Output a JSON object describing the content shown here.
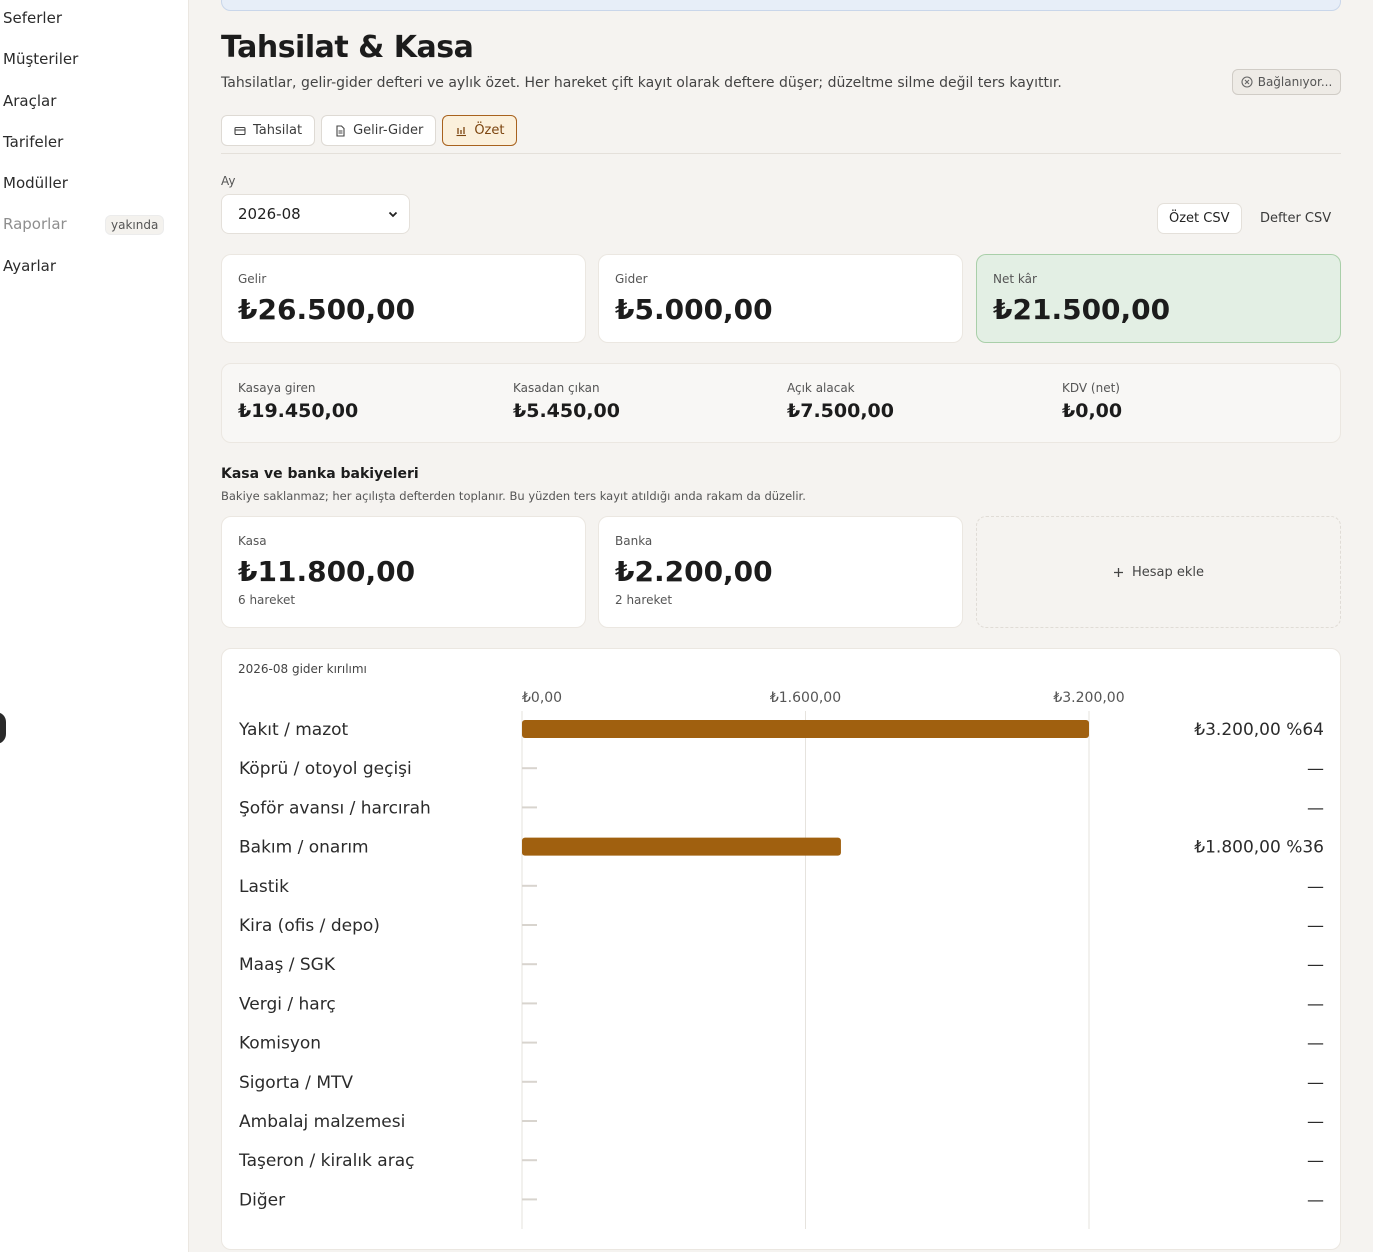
{
  "sidebar": {
    "items": [
      {
        "label": "Seferler"
      },
      {
        "label": "Müşteriler"
      },
      {
        "label": "Araçlar"
      },
      {
        "label": "Tarifeler"
      },
      {
        "label": "Modüller"
      },
      {
        "label": "Raporlar",
        "badge": "yakında",
        "disabled": true
      },
      {
        "label": "Ayarlar"
      }
    ]
  },
  "header": {
    "title": "Tahsilat & Kasa",
    "subtitle": "Tahsilatlar, gelir-gider defteri ve aylık özet. Her hareket çift kayıt olarak deftere düşer; düzeltme silme değil ters kayıttır.",
    "status": "Bağlanıyor..."
  },
  "tabs": [
    {
      "label": "Tahsilat",
      "icon": "card-icon"
    },
    {
      "label": "Gelir-Gider",
      "icon": "document-icon"
    },
    {
      "label": "Özet",
      "icon": "chart-icon",
      "active": true
    }
  ],
  "filter": {
    "month_label": "Ay",
    "month_value": "2026-08"
  },
  "exports": {
    "summary_csv": "Özet CSV",
    "ledger_csv": "Defter CSV"
  },
  "summary": {
    "income_label": "Gelir",
    "income_value": "₺26.500,00",
    "expense_label": "Gider",
    "expense_value": "₺5.000,00",
    "net_label": "Net kâr",
    "net_value": "₺21.500,00"
  },
  "cash_stats": [
    {
      "label": "Kasaya giren",
      "value": "₺19.450,00"
    },
    {
      "label": "Kasadan çıkan",
      "value": "₺5.450,00"
    },
    {
      "label": "Açık alacak",
      "value": "₺7.500,00"
    },
    {
      "label": "KDV (net)",
      "value": "₺0,00"
    }
  ],
  "balances": {
    "title": "Kasa ve banka bakiyeleri",
    "subtitle": "Bakiye saklanmaz; her açılışta defterden toplanır. Bu yüzden ters kayıt atıldığı anda rakam da düzelir.",
    "accounts": [
      {
        "name": "Kasa",
        "value": "₺11.800,00",
        "count": "6 hareket"
      },
      {
        "name": "Banka",
        "value": "₺2.200,00",
        "count": "2 hareket"
      }
    ],
    "add_label": "Hesap ekle"
  },
  "chart_data": {
    "type": "bar",
    "orientation": "horizontal",
    "title": "2026-08 gider kırılımı",
    "xlim": [
      0,
      3200
    ],
    "ticks": [
      "₺0,00",
      "₺1.600,00",
      "₺3.200,00"
    ],
    "tick_values": [
      0,
      1600,
      3200
    ],
    "categories": [
      "Yakıt / mazot",
      "Köprü / otoyol geçişi",
      "Şoför avansı / harcırah",
      "Bakım / onarım",
      "Lastik",
      "Kira (ofis / depo)",
      "Maaş / SGK",
      "Vergi / harç",
      "Komisyon",
      "Sigorta / MTV",
      "Ambalaj malzemesi",
      "Taşeron / kiralık araç",
      "Diğer"
    ],
    "values": [
      3200,
      0,
      0,
      1800,
      0,
      0,
      0,
      0,
      0,
      0,
      0,
      0,
      0
    ],
    "value_labels": [
      "₺3.200,00 %64",
      "—",
      "—",
      "₺1.800,00 %36",
      "—",
      "—",
      "—",
      "—",
      "—",
      "—",
      "—",
      "—",
      "—"
    ],
    "bar_color": "#a0600f",
    "grid": true
  }
}
